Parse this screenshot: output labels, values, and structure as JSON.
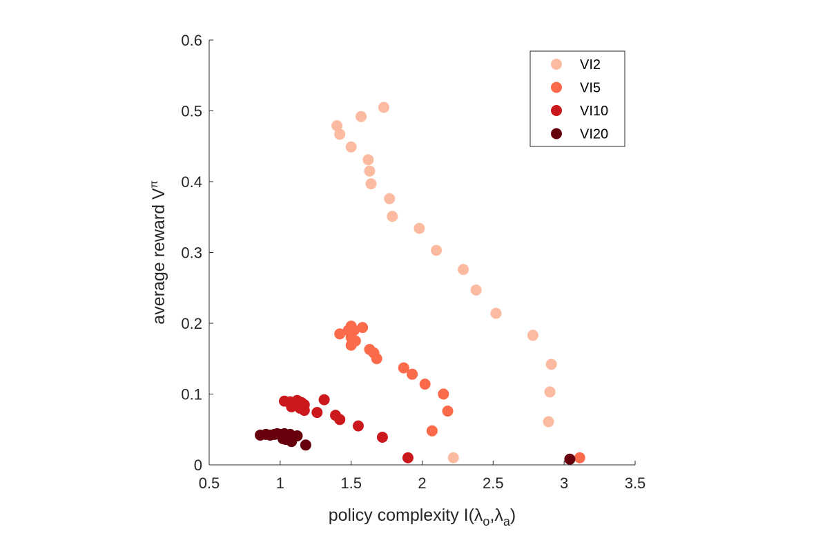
{
  "chart_data": {
    "type": "scatter",
    "xlabel": "policy complexity I(λo,λa)",
    "xlabel_parts": {
      "main": "policy complexity I(",
      "lambda1": "λ",
      "sub1": "o",
      "comma": ",",
      "lambda2": "λ",
      "sub2": "a",
      "close": ")"
    },
    "ylabel": "average reward V^π",
    "ylabel_parts": {
      "main": "average reward V",
      "sup": "π"
    },
    "xlim": [
      0.5,
      3.5
    ],
    "ylim": [
      0,
      0.6
    ],
    "xticks": [
      0.5,
      1,
      1.5,
      2,
      2.5,
      3,
      3.5
    ],
    "xtick_labels": [
      "0.5",
      "1",
      "1.5",
      "2",
      "2.5",
      "3",
      "3.5"
    ],
    "yticks": [
      0,
      0.1,
      0.2,
      0.3,
      0.4,
      0.5,
      0.6
    ],
    "ytick_labels": [
      "0",
      "0.1",
      "0.2",
      "0.3",
      "0.4",
      "0.5",
      "0.6"
    ],
    "grid": false,
    "legend_position": "top-right",
    "series": [
      {
        "name": "VI2",
        "color": "#FCBBA1",
        "x": [
          1.73,
          1.57,
          1.4,
          1.42,
          1.5,
          1.62,
          1.63,
          1.64,
          1.77,
          1.79,
          1.98,
          2.1,
          2.29,
          2.38,
          2.52,
          2.78,
          2.91,
          2.9,
          2.89,
          2.22
        ],
        "y": [
          0.505,
          0.492,
          0.479,
          0.467,
          0.449,
          0.431,
          0.415,
          0.397,
          0.376,
          0.351,
          0.334,
          0.303,
          0.276,
          0.247,
          0.214,
          0.183,
          0.142,
          0.103,
          0.061,
          0.01
        ]
      },
      {
        "name": "VI5",
        "color": "#FB6A4A",
        "x": [
          1.5,
          1.52,
          1.58,
          1.48,
          1.42,
          1.5,
          1.53,
          1.5,
          1.63,
          1.66,
          1.68,
          1.87,
          1.93,
          2.02,
          2.15,
          2.18,
          2.07,
          3.11
        ],
        "y": [
          0.196,
          0.19,
          0.194,
          0.19,
          0.185,
          0.18,
          0.175,
          0.169,
          0.163,
          0.158,
          0.15,
          0.137,
          0.128,
          0.114,
          0.1,
          0.076,
          0.048,
          0.01
        ]
      },
      {
        "name": "VI10",
        "color": "#CB181D",
        "x": [
          1.03,
          1.07,
          1.12,
          1.1,
          1.15,
          1.17,
          1.13,
          1.08,
          1.14,
          1.17,
          1.31,
          1.26,
          1.39,
          1.42,
          1.55,
          1.72,
          1.9
        ],
        "y": [
          0.09,
          0.089,
          0.091,
          0.086,
          0.088,
          0.085,
          0.083,
          0.082,
          0.08,
          0.077,
          0.092,
          0.074,
          0.07,
          0.064,
          0.055,
          0.039,
          0.01
        ]
      },
      {
        "name": "VI20",
        "color": "#67000D",
        "x": [
          0.86,
          0.9,
          0.93,
          0.96,
          0.98,
          1.01,
          1.03,
          1.05,
          1.07,
          1.09,
          1.12,
          1.02,
          1.04,
          1.06,
          1.08,
          1.18,
          3.04
        ],
        "y": [
          0.042,
          0.043,
          0.042,
          0.043,
          0.044,
          0.043,
          0.044,
          0.042,
          0.043,
          0.04,
          0.041,
          0.037,
          0.036,
          0.038,
          0.033,
          0.028,
          0.008
        ]
      }
    ]
  }
}
